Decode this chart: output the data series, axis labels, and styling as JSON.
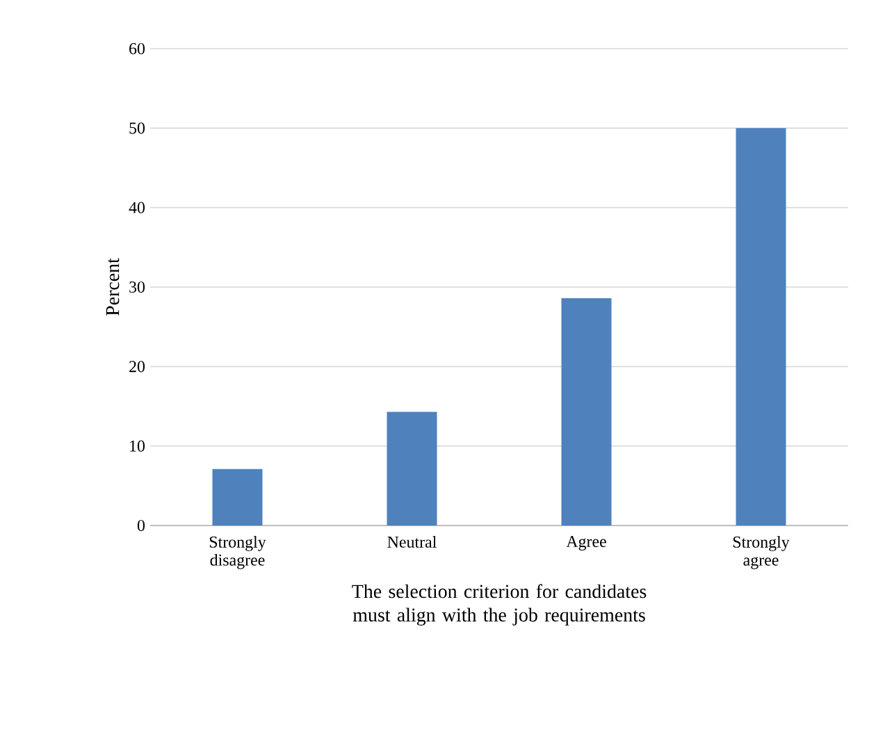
{
  "chart_data": {
    "type": "bar",
    "xlabel": "The selection criterion for candidates must align with the job requirements",
    "ylabel": "Percent",
    "categories": [
      "Strongly disagree",
      "Neutral",
      "Agree",
      "Strongly agree"
    ],
    "values": [
      7.1,
      14.3,
      28.6,
      50
    ],
    "color": "#4f81bd",
    "ylim": [
      0,
      60
    ],
    "yticks": [
      0,
      10,
      20,
      30,
      40,
      50,
      60
    ],
    "grid": "y"
  }
}
